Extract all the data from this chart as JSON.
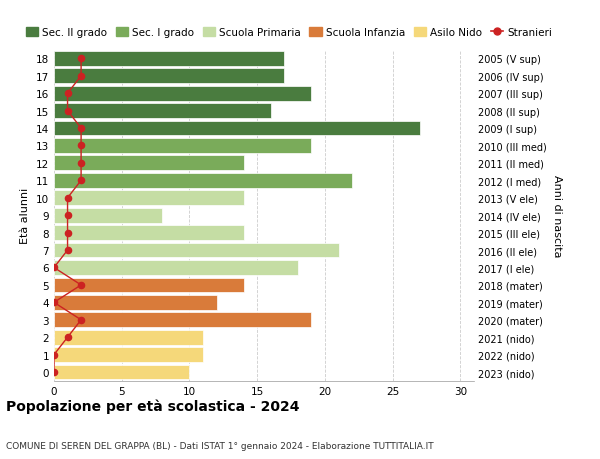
{
  "ages": [
    18,
    17,
    16,
    15,
    14,
    13,
    12,
    11,
    10,
    9,
    8,
    7,
    6,
    5,
    4,
    3,
    2,
    1,
    0
  ],
  "values": [
    17,
    17,
    19,
    16,
    27,
    19,
    14,
    22,
    14,
    8,
    14,
    21,
    18,
    14,
    12,
    19,
    11,
    11,
    10
  ],
  "stranieri": [
    2,
    2,
    1,
    1,
    2,
    2,
    2,
    2,
    1,
    1,
    1,
    1,
    0,
    2,
    0,
    2,
    1,
    0,
    0
  ],
  "right_labels": [
    "2005 (V sup)",
    "2006 (IV sup)",
    "2007 (III sup)",
    "2008 (II sup)",
    "2009 (I sup)",
    "2010 (III med)",
    "2011 (II med)",
    "2012 (I med)",
    "2013 (V ele)",
    "2014 (IV ele)",
    "2015 (III ele)",
    "2016 (II ele)",
    "2017 (I ele)",
    "2018 (mater)",
    "2019 (mater)",
    "2020 (mater)",
    "2021 (nido)",
    "2022 (nido)",
    "2023 (nido)"
  ],
  "bar_colors": [
    "#4a7c3f",
    "#4a7c3f",
    "#4a7c3f",
    "#4a7c3f",
    "#4a7c3f",
    "#7aab5a",
    "#7aab5a",
    "#7aab5a",
    "#c5dda4",
    "#c5dda4",
    "#c5dda4",
    "#c5dda4",
    "#c5dda4",
    "#d97b3a",
    "#d97b3a",
    "#d97b3a",
    "#f5d87a",
    "#f5d87a",
    "#f5d87a"
  ],
  "legend_labels": [
    "Sec. II grado",
    "Sec. I grado",
    "Scuola Primaria",
    "Scuola Infanzia",
    "Asilo Nido",
    "Stranieri"
  ],
  "legend_colors": [
    "#4a7c3f",
    "#7aab5a",
    "#c5dda4",
    "#d97b3a",
    "#f5d87a",
    "#cc2222"
  ],
  "title": "Popolazione per età scolastica - 2024",
  "subtitle": "COMUNE DI SEREN DEL GRAPPA (BL) - Dati ISTAT 1° gennaio 2024 - Elaborazione TUTTITALIA.IT",
  "ylabel_left": "Età alunni",
  "ylabel_right": "Anni di nascita",
  "xlim": [
    0,
    31
  ],
  "xticks": [
    0,
    5,
    10,
    15,
    20,
    25,
    30
  ],
  "background_color": "#ffffff",
  "grid_color": "#cccccc",
  "stranieri_color": "#cc2222"
}
